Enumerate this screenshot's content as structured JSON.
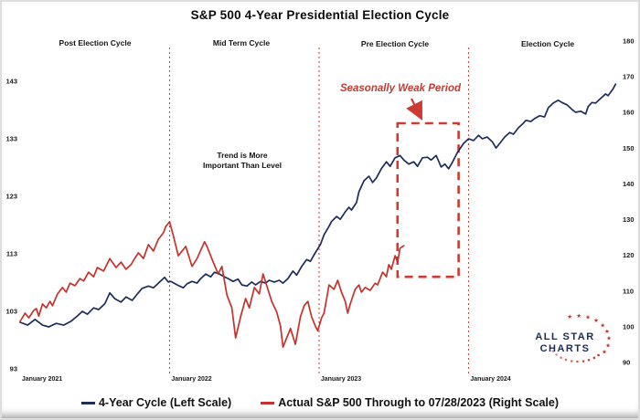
{
  "title": "S&P 500 4-Year Presidential Election Cycle",
  "annotations": {
    "weak_period": "Seasonally Weak Period",
    "trend_line1": "Trend is More",
    "trend_line2": "Important Than Level"
  },
  "logo": {
    "line1": "ALL STAR",
    "line2": "CHARTS"
  },
  "legend": [
    {
      "label": "4-Year Cycle (Left Scale)",
      "color": "#1e2d58"
    },
    {
      "label": "Actual S&P 500 Through to 07/28/2023 (Right Scale)",
      "color": "#c5312c"
    }
  ],
  "chart_data": {
    "type": "line",
    "title": "S&P 500 4-Year Presidential Election Cycle",
    "grid": false,
    "legend_position": "bottom",
    "quadrant_labels": [
      "Post Election Cycle",
      "Mid Term Cycle",
      "Pre Election Cycle",
      "Election Cycle"
    ],
    "x_axis": {
      "labels": [
        "January 2021",
        "January 2022",
        "January 2023",
        "January 2024"
      ],
      "domain_months": [
        0,
        48
      ]
    },
    "left_axis": {
      "ticks": [
        143,
        133,
        123,
        113,
        103,
        93
      ],
      "range": [
        93,
        143
      ]
    },
    "right_axis": {
      "ticks": [
        180,
        170,
        160,
        150,
        140,
        130,
        120,
        110,
        100,
        90
      ],
      "range": [
        90,
        180
      ]
    },
    "dividers_months": [
      12,
      24,
      36
    ],
    "weak_period_box": {
      "x_months": [
        30.3,
        35.2
      ],
      "right_scale": [
        114,
        157
      ]
    },
    "series": [
      {
        "name": "4-Year Cycle (Left Scale)",
        "scale": "left",
        "color": "#1e2d58",
        "points": [
          [
            0,
            101.1
          ],
          [
            0.6,
            100.6
          ],
          [
            1.2,
            101.6
          ],
          [
            1.8,
            100.6
          ],
          [
            2.3,
            100.3
          ],
          [
            2.9,
            100.9
          ],
          [
            3.5,
            100.6
          ],
          [
            4.1,
            101.3
          ],
          [
            4.6,
            102.2
          ],
          [
            5,
            103
          ],
          [
            5.4,
            102.5
          ],
          [
            5.9,
            103.6
          ],
          [
            6.3,
            103.3
          ],
          [
            6.8,
            104.3
          ],
          [
            7.2,
            106.2
          ],
          [
            7.6,
            105.2
          ],
          [
            8.1,
            104.6
          ],
          [
            8.5,
            105.5
          ],
          [
            9,
            104.9
          ],
          [
            9.4,
            106
          ],
          [
            9.8,
            107
          ],
          [
            10.3,
            107.4
          ],
          [
            10.7,
            107.1
          ],
          [
            11.2,
            108.1
          ],
          [
            11.6,
            108.9
          ],
          [
            11.9,
            108.1
          ],
          [
            12.1,
            108.2
          ],
          [
            12.6,
            107.6
          ],
          [
            13.1,
            107.1
          ],
          [
            13.4,
            107.8
          ],
          [
            13.8,
            108.2
          ],
          [
            14.2,
            107.9
          ],
          [
            14.5,
            108.7
          ],
          [
            14.9,
            109.5
          ],
          [
            15.3,
            109
          ],
          [
            15.6,
            109.8
          ],
          [
            16,
            109.5
          ],
          [
            16.4,
            109
          ],
          [
            16.7,
            108.7
          ],
          [
            17.1,
            108.2
          ],
          [
            17.5,
            108.6
          ],
          [
            17.8,
            107.6
          ],
          [
            18.2,
            107.4
          ],
          [
            18.6,
            108.1
          ],
          [
            18.9,
            107.6
          ],
          [
            19.3,
            108.2
          ],
          [
            19.7,
            107.9
          ],
          [
            20,
            108.4
          ],
          [
            20.4,
            108.1
          ],
          [
            20.8,
            108.4
          ],
          [
            21.1,
            107.9
          ],
          [
            21.5,
            108.7
          ],
          [
            21.9,
            110
          ],
          [
            22.2,
            109.3
          ],
          [
            22.6,
            110.8
          ],
          [
            23,
            112
          ],
          [
            23.3,
            111.7
          ],
          [
            23.7,
            113.2
          ],
          [
            24.1,
            114.6
          ],
          [
            24.4,
            116.3
          ],
          [
            24.8,
            117.8
          ],
          [
            25,
            118.6
          ],
          [
            25.4,
            119.5
          ],
          [
            25.7,
            119
          ],
          [
            26.1,
            120.3
          ],
          [
            26.4,
            121.1
          ],
          [
            26.6,
            120.6
          ],
          [
            27,
            121.9
          ],
          [
            27.2,
            123.8
          ],
          [
            27.6,
            125.7
          ],
          [
            28,
            126.5
          ],
          [
            28.3,
            125.4
          ],
          [
            28.6,
            126.2
          ],
          [
            29,
            127.8
          ],
          [
            29.4,
            129
          ],
          [
            29.7,
            128.2
          ],
          [
            30.1,
            129.7
          ],
          [
            30.5,
            130.1
          ],
          [
            30.8,
            129.3
          ],
          [
            31.2,
            128.6
          ],
          [
            31.6,
            129
          ],
          [
            31.9,
            128.2
          ],
          [
            32.3,
            129.7
          ],
          [
            32.7,
            129.8
          ],
          [
            33,
            129.3
          ],
          [
            33.4,
            130.1
          ],
          [
            33.8,
            128.1
          ],
          [
            34.1,
            128.6
          ],
          [
            34.4,
            127.8
          ],
          [
            34.7,
            128.9
          ],
          [
            35.1,
            130.6
          ],
          [
            35.6,
            132.2
          ],
          [
            36,
            133
          ],
          [
            36.4,
            132.7
          ],
          [
            36.8,
            133.6
          ],
          [
            37.1,
            133
          ],
          [
            37.5,
            133.3
          ],
          [
            37.9,
            132.5
          ],
          [
            38.2,
            131.4
          ],
          [
            38.5,
            132.2
          ],
          [
            38.9,
            133.3
          ],
          [
            39.3,
            134.1
          ],
          [
            39.6,
            133.8
          ],
          [
            40,
            134.9
          ],
          [
            40.4,
            135.7
          ],
          [
            40.6,
            136.2
          ],
          [
            41,
            136
          ],
          [
            41.3,
            136.5
          ],
          [
            41.7,
            137
          ],
          [
            42.1,
            136.8
          ],
          [
            42.4,
            138.4
          ],
          [
            42.8,
            139.2
          ],
          [
            43.2,
            139.7
          ],
          [
            43.5,
            139.3
          ],
          [
            43.9,
            138.9
          ],
          [
            44.3,
            138.1
          ],
          [
            44.6,
            137.6
          ],
          [
            45,
            137.8
          ],
          [
            45.4,
            137.3
          ],
          [
            45.6,
            138.6
          ],
          [
            45.9,
            139.3
          ],
          [
            46.2,
            139.2
          ],
          [
            46.6,
            140
          ],
          [
            47,
            140.8
          ],
          [
            47.2,
            140.5
          ],
          [
            47.6,
            141.7
          ],
          [
            47.8,
            142.5
          ]
        ]
      },
      {
        "name": "Actual S&P 500 Through to 07/28/2023 (Right Scale)",
        "scale": "right",
        "color": "#c5312c",
        "points": [
          [
            0,
            101.5
          ],
          [
            0.4,
            103.8
          ],
          [
            0.7,
            102.5
          ],
          [
            1.1,
            104.6
          ],
          [
            1.3,
            105.1
          ],
          [
            1.5,
            103
          ],
          [
            1.8,
            106.4
          ],
          [
            2.1,
            105.3
          ],
          [
            2.4,
            107.1
          ],
          [
            2.6,
            105.9
          ],
          [
            3,
            109.2
          ],
          [
            3.4,
            111
          ],
          [
            3.7,
            109.7
          ],
          [
            4,
            112.2
          ],
          [
            4.4,
            111.5
          ],
          [
            4.8,
            113.5
          ],
          [
            5.1,
            112.8
          ],
          [
            5.5,
            115.3
          ],
          [
            5.9,
            114
          ],
          [
            6.2,
            116.6
          ],
          [
            6.7,
            115.6
          ],
          [
            7.2,
            119.1
          ],
          [
            7.7,
            116.6
          ],
          [
            8.1,
            118.1
          ],
          [
            8.5,
            116.1
          ],
          [
            8.9,
            117.4
          ],
          [
            9.2,
            119.1
          ],
          [
            9.5,
            120.7
          ],
          [
            9.9,
            119.1
          ],
          [
            10.3,
            123
          ],
          [
            10.7,
            121.2
          ],
          [
            11.1,
            124.5
          ],
          [
            11.5,
            126.3
          ],
          [
            11.7,
            128.1
          ],
          [
            12,
            129.4
          ],
          [
            12.3,
            125.5
          ],
          [
            12.7,
            119.9
          ],
          [
            13.3,
            122.5
          ],
          [
            13.8,
            116.9
          ],
          [
            14.2,
            119.1
          ],
          [
            14.8,
            123.8
          ],
          [
            15,
            122.5
          ],
          [
            15.5,
            118.1
          ],
          [
            15.9,
            114.8
          ],
          [
            16.2,
            116.9
          ],
          [
            16.6,
            108.9
          ],
          [
            17,
            105.3
          ],
          [
            17.3,
            96.9
          ],
          [
            17.7,
            102.8
          ],
          [
            18.1,
            107.9
          ],
          [
            18.4,
            105.3
          ],
          [
            18.8,
            111
          ],
          [
            19.2,
            109.2
          ],
          [
            19.5,
            114.8
          ],
          [
            19.8,
            111.5
          ],
          [
            20.2,
            107.1
          ],
          [
            20.6,
            104.1
          ],
          [
            20.9,
            100.2
          ],
          [
            21.1,
            94.3
          ],
          [
            21.4,
            96.9
          ],
          [
            21.7,
            99.5
          ],
          [
            22.1,
            95.1
          ],
          [
            22.5,
            102.8
          ],
          [
            22.8,
            105.9
          ],
          [
            23.1,
            107.1
          ],
          [
            23.4,
            102.8
          ],
          [
            23.7,
            100.2
          ],
          [
            23.9,
            98.9
          ],
          [
            24.2,
            102.5
          ],
          [
            24.4,
            103.8
          ],
          [
            24.8,
            111.7
          ],
          [
            25.2,
            110.5
          ],
          [
            25.5,
            113
          ],
          [
            25.8,
            109.7
          ],
          [
            26.1,
            107.1
          ],
          [
            26.3,
            103.8
          ],
          [
            26.5,
            106.4
          ],
          [
            26.9,
            110.5
          ],
          [
            27.2,
            111.7
          ],
          [
            27.4,
            109.7
          ],
          [
            27.7,
            111
          ],
          [
            28.1,
            110.2
          ],
          [
            28.5,
            112.2
          ],
          [
            28.7,
            111.7
          ],
          [
            29.1,
            115.3
          ],
          [
            29.4,
            114
          ],
          [
            29.6,
            117.4
          ],
          [
            29.8,
            116.1
          ],
          [
            30.1,
            119.9
          ],
          [
            30.3,
            118.1
          ],
          [
            30.5,
            122
          ],
          [
            30.8,
            122.7
          ]
        ]
      }
    ]
  }
}
